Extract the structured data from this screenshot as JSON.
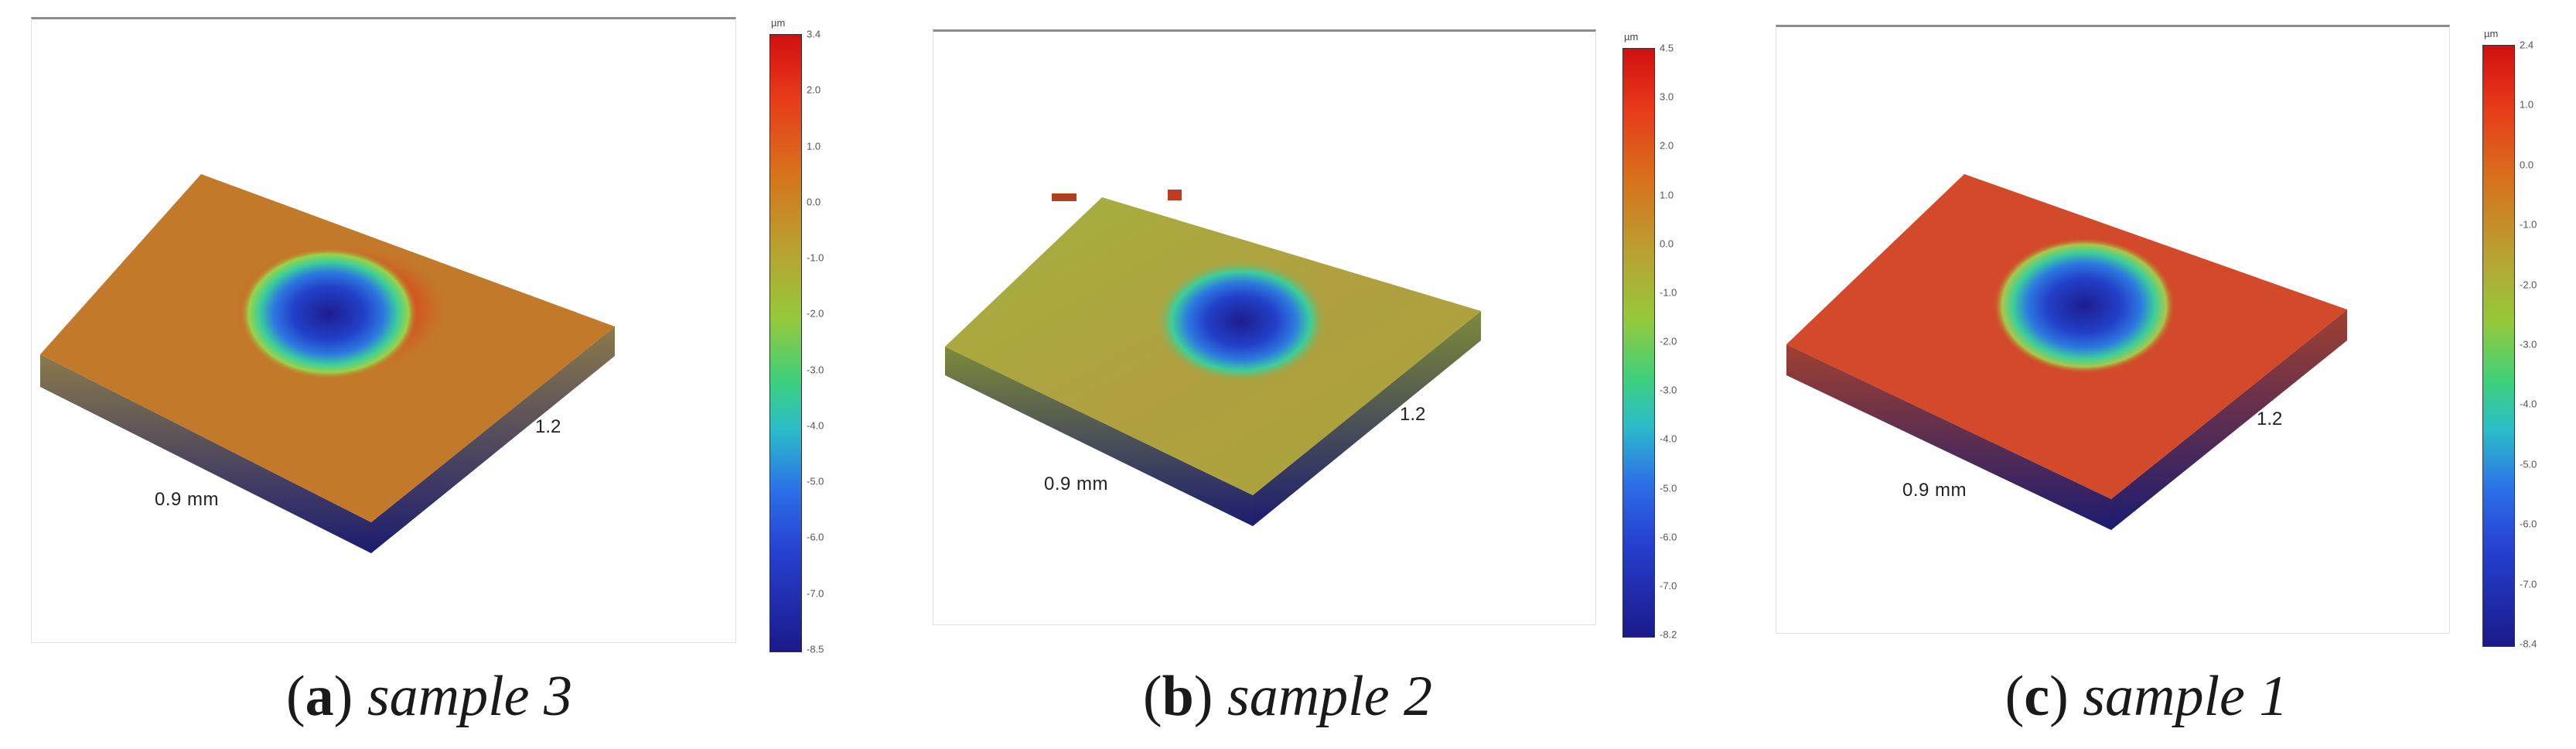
{
  "panels": [
    {
      "id": "a",
      "caption": {
        "open": "(",
        "letter": "a",
        "close": ")",
        "name": "sample 3"
      },
      "axis": {
        "width_label": "0.9 mm",
        "depth_label": "1.2"
      },
      "colorbar": {
        "unit": "µm",
        "ticks": [
          "3.4",
          "2.0",
          "1.0",
          "0.0",
          "-1.0",
          "-2.0",
          "-3.0",
          "-4.0",
          "-5.0",
          "-6.0",
          "-7.0",
          "-8.5"
        ]
      },
      "surface_color": "#c27a2a"
    },
    {
      "id": "b",
      "caption": {
        "open": "(",
        "letter": "b",
        "close": ")",
        "name": "sample 2"
      },
      "axis": {
        "width_label": "0.9 mm",
        "depth_label": "1.2"
      },
      "colorbar": {
        "unit": "µm",
        "ticks": [
          "4.5",
          "3.0",
          "2.0",
          "1.0",
          "0.0",
          "-1.0",
          "-2.0",
          "-3.0",
          "-4.0",
          "-5.0",
          "-6.0",
          "-7.0",
          "-8.2"
        ]
      },
      "surface_color": "#a9a33a"
    },
    {
      "id": "c",
      "caption": {
        "open": "(",
        "letter": "c",
        "close": ")",
        "name": "sample 1"
      },
      "axis": {
        "width_label": "0.9 mm",
        "depth_label": "1.2"
      },
      "colorbar": {
        "unit": "µm",
        "ticks": [
          "2.4",
          "1.0",
          "0.0",
          "-1.0",
          "-2.0",
          "-3.0",
          "-4.0",
          "-5.0",
          "-6.0",
          "-7.0",
          "-8.4"
        ]
      },
      "surface_color": "#d24a2a"
    }
  ]
}
